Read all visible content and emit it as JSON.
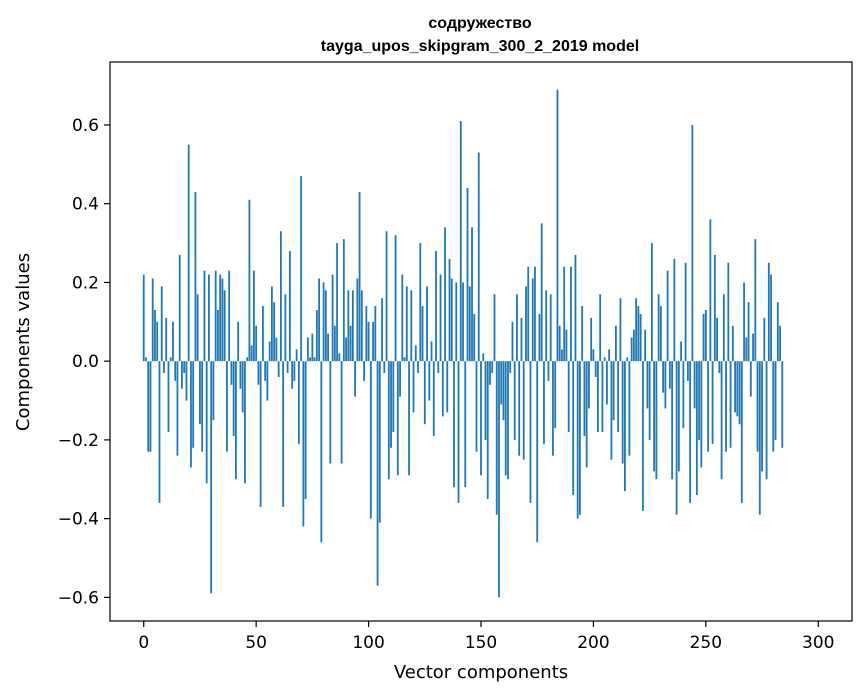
{
  "chart_data": {
    "type": "bar",
    "title": "содружество",
    "subtitle": "tayga_upos_skipgram_300_2_2019 model",
    "xlabel": "Vector components",
    "ylabel": "Components values",
    "xlim": [
      -15,
      315
    ],
    "ylim": [
      -0.66,
      0.76
    ],
    "xticks": [
      0,
      50,
      100,
      150,
      200,
      250,
      300
    ],
    "yticks": [
      -0.6,
      -0.4,
      -0.2,
      0.0,
      0.2,
      0.4,
      0.6
    ],
    "ytick_labels": [
      "−0.6",
      "−0.4",
      "−0.2",
      "0.0",
      "0.2",
      "0.4",
      "0.6"
    ],
    "xtick_labels": [
      "0",
      "50",
      "100",
      "150",
      "200",
      "250",
      "300"
    ],
    "bar_color": "#1f77b4",
    "grid": false,
    "values": [
      0.22,
      0.01,
      -0.23,
      -0.23,
      0.21,
      0.13,
      0.1,
      -0.36,
      0.19,
      -0.03,
      0.11,
      -0.18,
      0.01,
      0.1,
      -0.05,
      -0.24,
      0.27,
      -0.07,
      -0.03,
      -0.1,
      0.55,
      -0.27,
      -0.22,
      0.43,
      0.17,
      -0.16,
      -0.23,
      0.23,
      -0.31,
      0.22,
      -0.59,
      -0.15,
      0.23,
      0.13,
      0.22,
      0.21,
      0.18,
      -0.23,
      0.23,
      -0.06,
      -0.19,
      -0.3,
      0.1,
      -0.07,
      -0.13,
      -0.31,
      0.01,
      0.41,
      0.04,
      0.23,
      0.09,
      -0.06,
      -0.37,
      0.14,
      -0.05,
      -0.1,
      0.05,
      0.19,
      0.15,
      0.06,
      -0.04,
      0.33,
      -0.37,
      0.17,
      -0.03,
      0.28,
      -0.07,
      -0.05,
      0.03,
      -0.21,
      0.47,
      -0.42,
      -0.35,
      0.06,
      0.01,
      0.07,
      0.01,
      0.13,
      0.21,
      -0.46,
      0.2,
      0.18,
      0.07,
      -0.26,
      0.22,
      0.09,
      0.3,
      0.02,
      -0.26,
      0.31,
      0.06,
      0.18,
      0.09,
      0.18,
      -0.09,
      0.21,
      0.43,
      0.18,
      -0.05,
      0.14,
      0.1,
      -0.4,
      0.1,
      0.14,
      -0.57,
      -0.41,
      0.16,
      -0.03,
      0.33,
      -0.3,
      -0.22,
      -0.18,
      0.32,
      -0.29,
      -0.09,
      0.22,
      0.01,
      0.19,
      -0.29,
      0.18,
      -0.13,
      0.04,
      -0.03,
      0.3,
      0.14,
      -0.16,
      0.19,
      -0.1,
      0.05,
      -0.19,
      0.28,
      -0.03,
      0.22,
      -0.14,
      0.34,
      -0.13,
      0.26,
      0.21,
      -0.32,
      0.2,
      -0.36,
      0.61,
      0.2,
      -0.32,
      0.44,
      0.19,
      0.34,
      0.12,
      -0.23,
      0.53,
      -0.29,
      0.02,
      -0.2,
      -0.35,
      -0.06,
      -0.03,
      0.17,
      -0.39,
      -0.6,
      -0.11,
      -0.15,
      -0.29,
      -0.3,
      -0.03,
      0.1,
      -0.2,
      0.17,
      -0.24,
      0.11,
      -0.25,
      0.19,
      0.24,
      -0.36,
      0.21,
      0.24,
      -0.46,
      0.12,
      0.35,
      -0.21,
      0.18,
      -0.05,
      0.17,
      -0.24,
      -0.17,
      0.69,
      0.09,
      0.03,
      0.24,
      0.08,
      -0.18,
      0.24,
      -0.34,
      0.27,
      -0.4,
      -0.39,
      0.14,
      -0.19,
      -0.27,
      -0.12,
      0.11,
      0.03,
      -0.04,
      -0.18,
      0.17,
      -0.18,
      0.01,
      -0.11,
      0.03,
      -0.25,
      -0.15,
      0.09,
      -0.18,
      0.16,
      -0.26,
      -0.33,
      0.01,
      -0.24,
      0.06,
      0.08,
      0.16,
      0.14,
      0.12,
      -0.38,
      0.08,
      -0.12,
      -0.2,
      0.3,
      -0.28,
      -0.3,
      0.17,
      0.14,
      -0.08,
      -0.12,
      0.23,
      -0.07,
      -0.3,
      0.26,
      -0.39,
      -0.28,
      0.05,
      -0.17,
      0.25,
      -0.05,
      -0.36,
      0.6,
      -0.12,
      -0.34,
      -0.2,
      -0.27,
      0.12,
      0.13,
      -0.23,
      0.36,
      -0.21,
      0.27,
      0.11,
      -0.03,
      -0.3,
      0.17,
      -0.23,
      0.25,
      -0.22,
      0.09,
      -0.13,
      -0.14,
      -0.16,
      -0.36,
      0.2,
      0.06,
      0.15,
      -0.09,
      0.07,
      0.31,
      -0.23,
      -0.39,
      -0.28,
      0.11,
      -0.3,
      0.25,
      0.22,
      -0.23,
      -0.2,
      0.15,
      0.09,
      -0.22
    ]
  }
}
